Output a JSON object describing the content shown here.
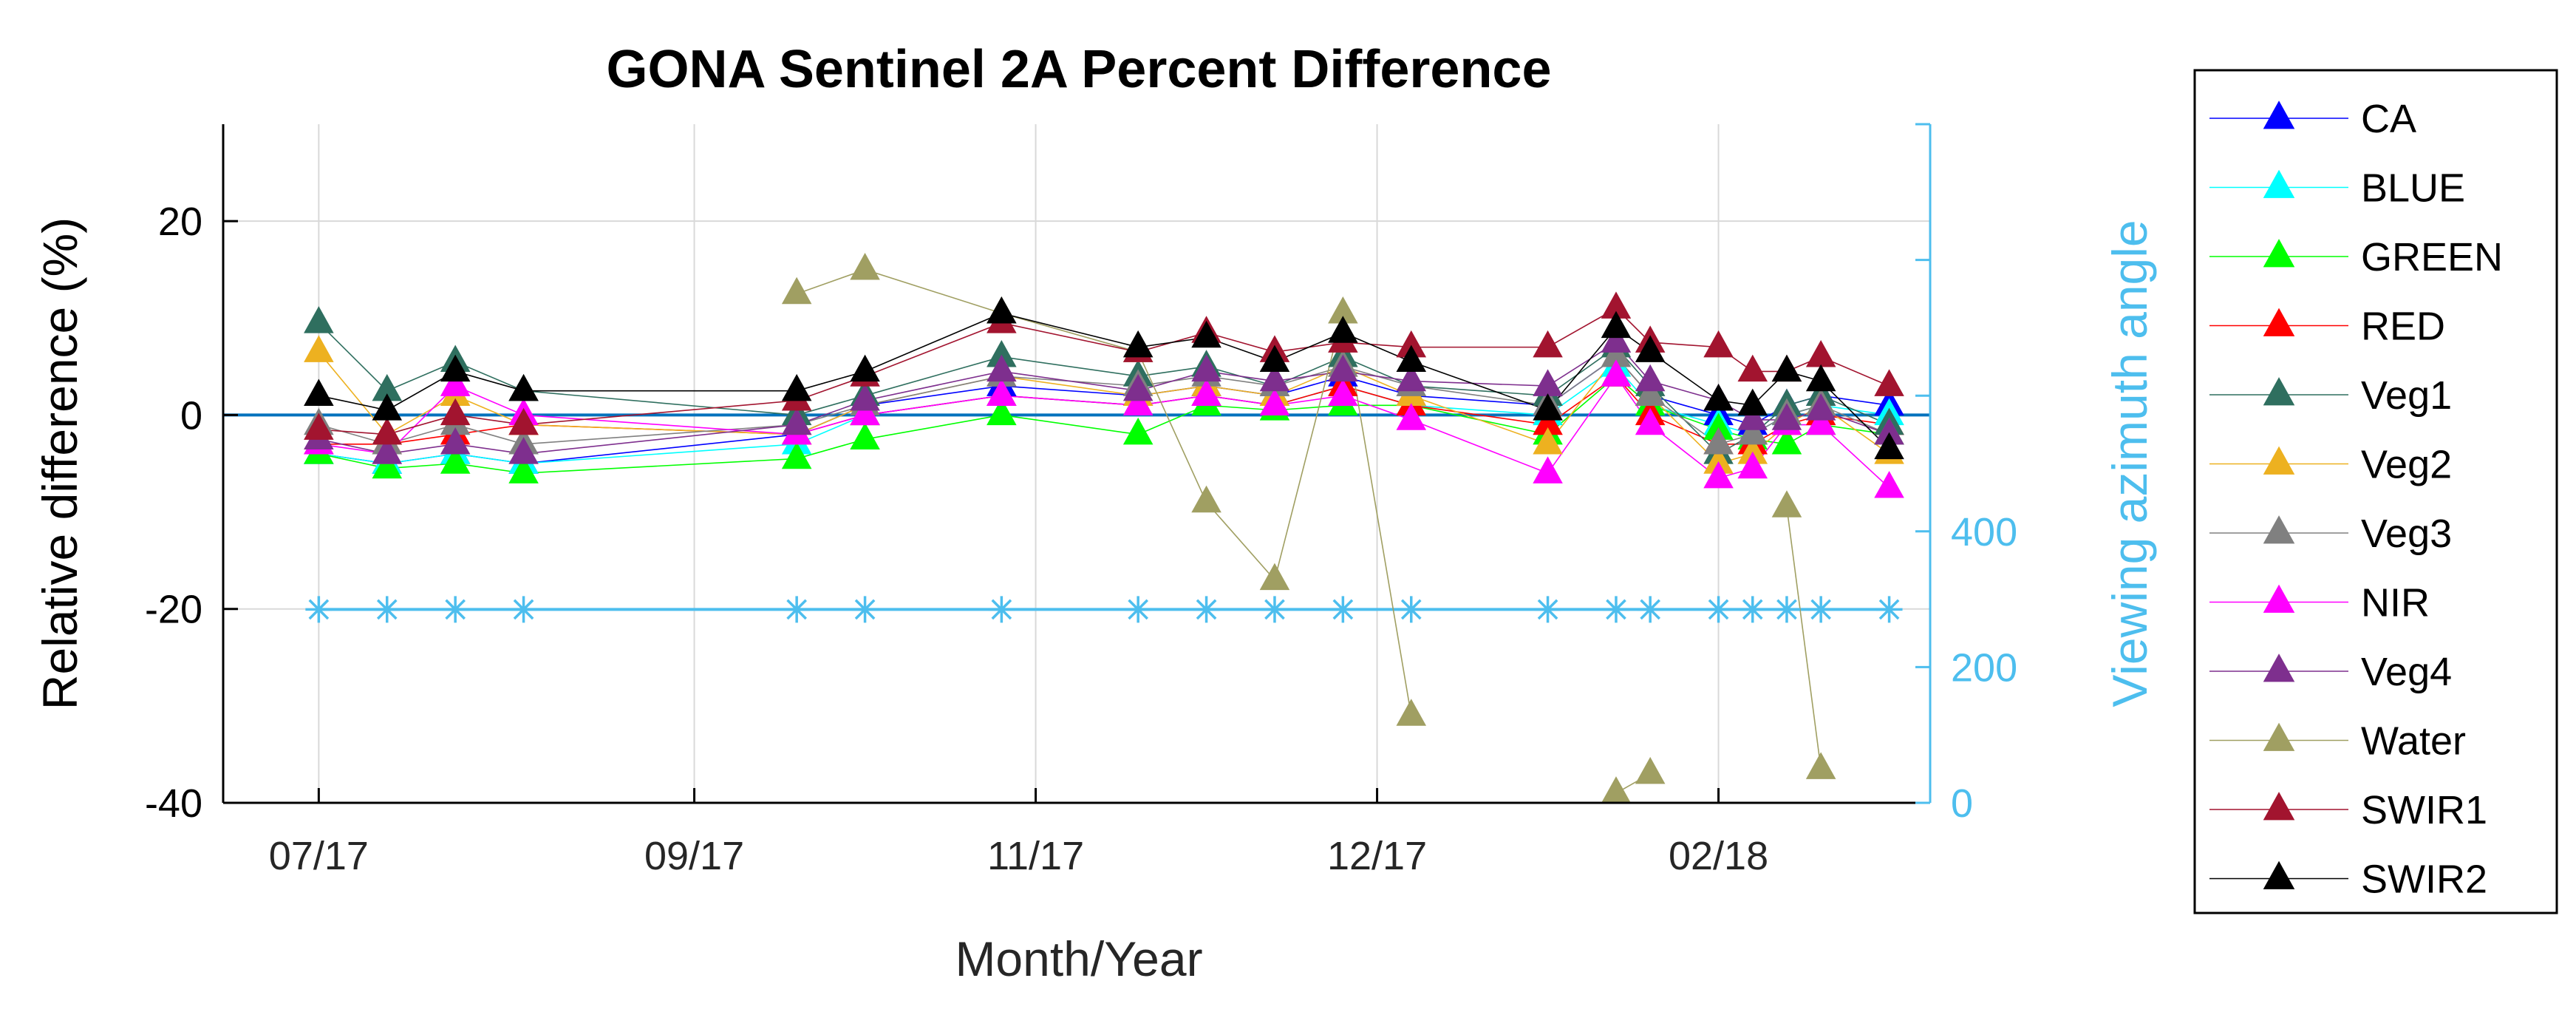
{
  "chart_data": {
    "type": "line",
    "title": "GONA Sentinel 2A Percent Difference",
    "xlabel": "Month/Year",
    "ylabel": "Relative difference (%)",
    "y2label": "Viewing azimuth angle",
    "ylim": [
      -40,
      30
    ],
    "y2lim": [
      0,
      1000
    ],
    "xlim": [
      0,
      250
    ],
    "grid": true,
    "legend_position": "outside-right",
    "x_tick_labels": [
      {
        "x": 14,
        "label": "07/17"
      },
      {
        "x": 69,
        "label": "09/17"
      },
      {
        "x": 119,
        "label": "11/17"
      },
      {
        "x": 169,
        "label": "12/17"
      },
      {
        "x": 219,
        "label": "02/18"
      }
    ],
    "y_ticks": [
      {
        "value": 20,
        "label": "20"
      },
      {
        "value": 0,
        "label": "0"
      },
      {
        "value": -20,
        "label": "-20"
      },
      {
        "value": -40,
        "label": "-40"
      }
    ],
    "y2_ticks": [
      {
        "value": 0,
        "label": "0"
      },
      {
        "value": 200,
        "label": "200"
      },
      {
        "value": 400,
        "label": "400"
      },
      {
        "value": 600,
        "label": ""
      },
      {
        "value": 800,
        "label": ""
      },
      {
        "value": 1000,
        "label": ""
      }
    ],
    "x": [
      14,
      24,
      34,
      44,
      84,
      94,
      114,
      134,
      144,
      154,
      164,
      174,
      194,
      204,
      209,
      219,
      224,
      229,
      234,
      244
    ],
    "reference_line": {
      "y": 0,
      "color": "#0072BD"
    },
    "azimuth_series": {
      "name": "Viewing azimuth angle",
      "color": "#4DBEEE",
      "marker": "asterisk",
      "values": [
        285,
        285,
        285,
        285,
        285,
        285,
        285,
        285,
        285,
        285,
        285,
        285,
        285,
        285,
        285,
        285,
        285,
        285,
        285,
        285
      ]
    },
    "series": [
      {
        "name": "CA",
        "color": "#0000FF",
        "values": [
          -4,
          -5,
          -4,
          -5,
          -2,
          1,
          3,
          2,
          3,
          2,
          4,
          2,
          1,
          6,
          2,
          0,
          -1,
          1,
          2,
          1
        ]
      },
      {
        "name": "BLUE",
        "color": "#00FFFF",
        "values": [
          -4,
          -5,
          -4,
          -5,
          -3,
          0,
          2,
          1,
          2,
          1,
          3,
          1,
          0,
          5,
          1,
          -1,
          -2,
          0,
          1,
          0
        ]
      },
      {
        "name": "GREEN",
        "color": "#00FF00",
        "values": [
          -4,
          -5.5,
          -5,
          -6,
          -4.5,
          -2.5,
          0,
          -2,
          1,
          0.5,
          1,
          1,
          -2,
          4,
          1,
          -1.5,
          -2.5,
          -3,
          -1,
          -2
        ]
      },
      {
        "name": "RED",
        "color": "#FF0000",
        "values": [
          -3,
          -3,
          -2,
          -1,
          -2,
          0,
          2,
          1,
          2,
          1,
          3,
          1,
          -1,
          4,
          0,
          -3,
          -3,
          -1,
          0,
          -1
        ]
      },
      {
        "name": "Veg1",
        "color": "#2F6F5F",
        "values": [
          9.5,
          2.5,
          5.5,
          2.5,
          0,
          2,
          6,
          4,
          5,
          3,
          6,
          3,
          2,
          7,
          3,
          -4,
          -2,
          1,
          2,
          -1
        ]
      },
      {
        "name": "Veg2",
        "color": "#EDB120",
        "values": [
          6.5,
          -2,
          2,
          -1,
          -2,
          1,
          4,
          2,
          3,
          2,
          5,
          2,
          -3,
          6,
          2,
          -5,
          -4,
          -1,
          1,
          -4
        ]
      },
      {
        "name": "Veg3",
        "color": "#808080",
        "values": [
          -1,
          -3,
          -1,
          -3,
          -1,
          1,
          4,
          3,
          4,
          3,
          5,
          3,
          1,
          6,
          2,
          -3,
          -2,
          0,
          1,
          -2
        ]
      },
      {
        "name": "NIR",
        "color": "#FF00FF",
        "values": [
          -3,
          -4,
          3,
          0,
          -2,
          0,
          2,
          1,
          2,
          1,
          2,
          -0.5,
          -6,
          4,
          -1,
          -6.5,
          -5.5,
          -1,
          -1,
          -7.5
        ]
      },
      {
        "name": "Veg4",
        "color": "#7E2F8E",
        "values": [
          -2.5,
          -4,
          -3,
          -4,
          -1,
          1.5,
          4.5,
          2.5,
          4.5,
          3.5,
          4.5,
          3.5,
          3,
          7.5,
          3.5,
          1.5,
          -0.5,
          -0.5,
          0.5,
          -2
        ]
      },
      {
        "name": "Water",
        "color": "#A09F62",
        "values": [
          null,
          null,
          null,
          null,
          12.5,
          15,
          10.5,
          6.5,
          -9,
          -17,
          10.5,
          -31,
          null,
          -39,
          -37,
          null,
          null,
          -9.5,
          -36.5,
          null
        ]
      },
      {
        "name": "SWIR1",
        "color": "#A2142F",
        "values": [
          -1.5,
          -2,
          0,
          -1,
          1.5,
          4,
          9.5,
          6.5,
          8.5,
          6.5,
          7.5,
          7,
          7,
          11,
          7.5,
          7,
          4.5,
          4.5,
          6,
          3
        ]
      },
      {
        "name": "SWIR2",
        "color": "#000000",
        "values": [
          2,
          0.5,
          4.5,
          2.5,
          2.5,
          4.5,
          10.5,
          7,
          8,
          5.5,
          8.5,
          5.5,
          0.5,
          9,
          6.5,
          1.5,
          1,
          4.5,
          3.5,
          -3.5
        ]
      }
    ]
  }
}
